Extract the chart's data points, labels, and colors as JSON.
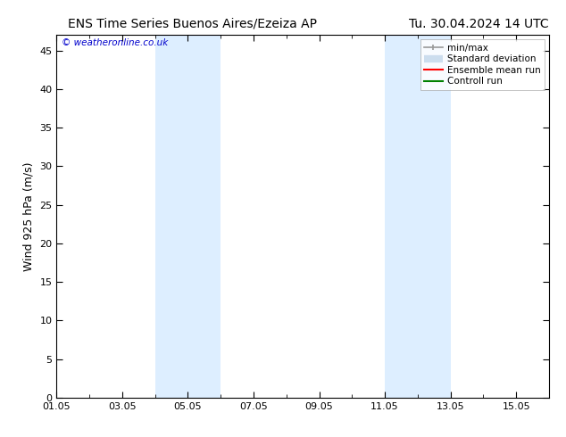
{
  "title_left": "ENS Time Series Buenos Aires/Ezeiza AP",
  "title_right": "Tu. 30.04.2024 14 UTC",
  "ylabel": "Wind 925 hPa (m/s)",
  "watermark": "© weatheronline.co.uk",
  "xlim_start": 0,
  "xlim_end": 15,
  "ylim_min": 0,
  "ylim_max": 47,
  "yticks": [
    0,
    5,
    10,
    15,
    20,
    25,
    30,
    35,
    40,
    45
  ],
  "xtick_labels": [
    "01.05",
    "03.05",
    "05.05",
    "07.05",
    "09.05",
    "11.05",
    "13.05",
    "15.05"
  ],
  "xtick_positions": [
    0,
    2,
    4,
    6,
    8,
    10,
    12,
    14
  ],
  "shaded_bands": [
    {
      "x_start": 3.0,
      "x_end": 5.0
    },
    {
      "x_start": 10.0,
      "x_end": 12.0
    }
  ],
  "shade_color": "#ddeeff",
  "background_color": "#ffffff",
  "plot_bg_color": "#ffffff",
  "legend_entries": [
    {
      "label": "min/max",
      "color": "#999999",
      "lw": 1.2
    },
    {
      "label": "Standard deviation",
      "color": "#ccddee",
      "lw": 6
    },
    {
      "label": "Ensemble mean run",
      "color": "#ff0000",
      "lw": 1.5
    },
    {
      "label": "Controll run",
      "color": "#008000",
      "lw": 1.5
    }
  ],
  "title_fontsize": 10,
  "tick_fontsize": 8,
  "ylabel_fontsize": 9,
  "watermark_color": "#0000cc",
  "frame_color": "#000000"
}
